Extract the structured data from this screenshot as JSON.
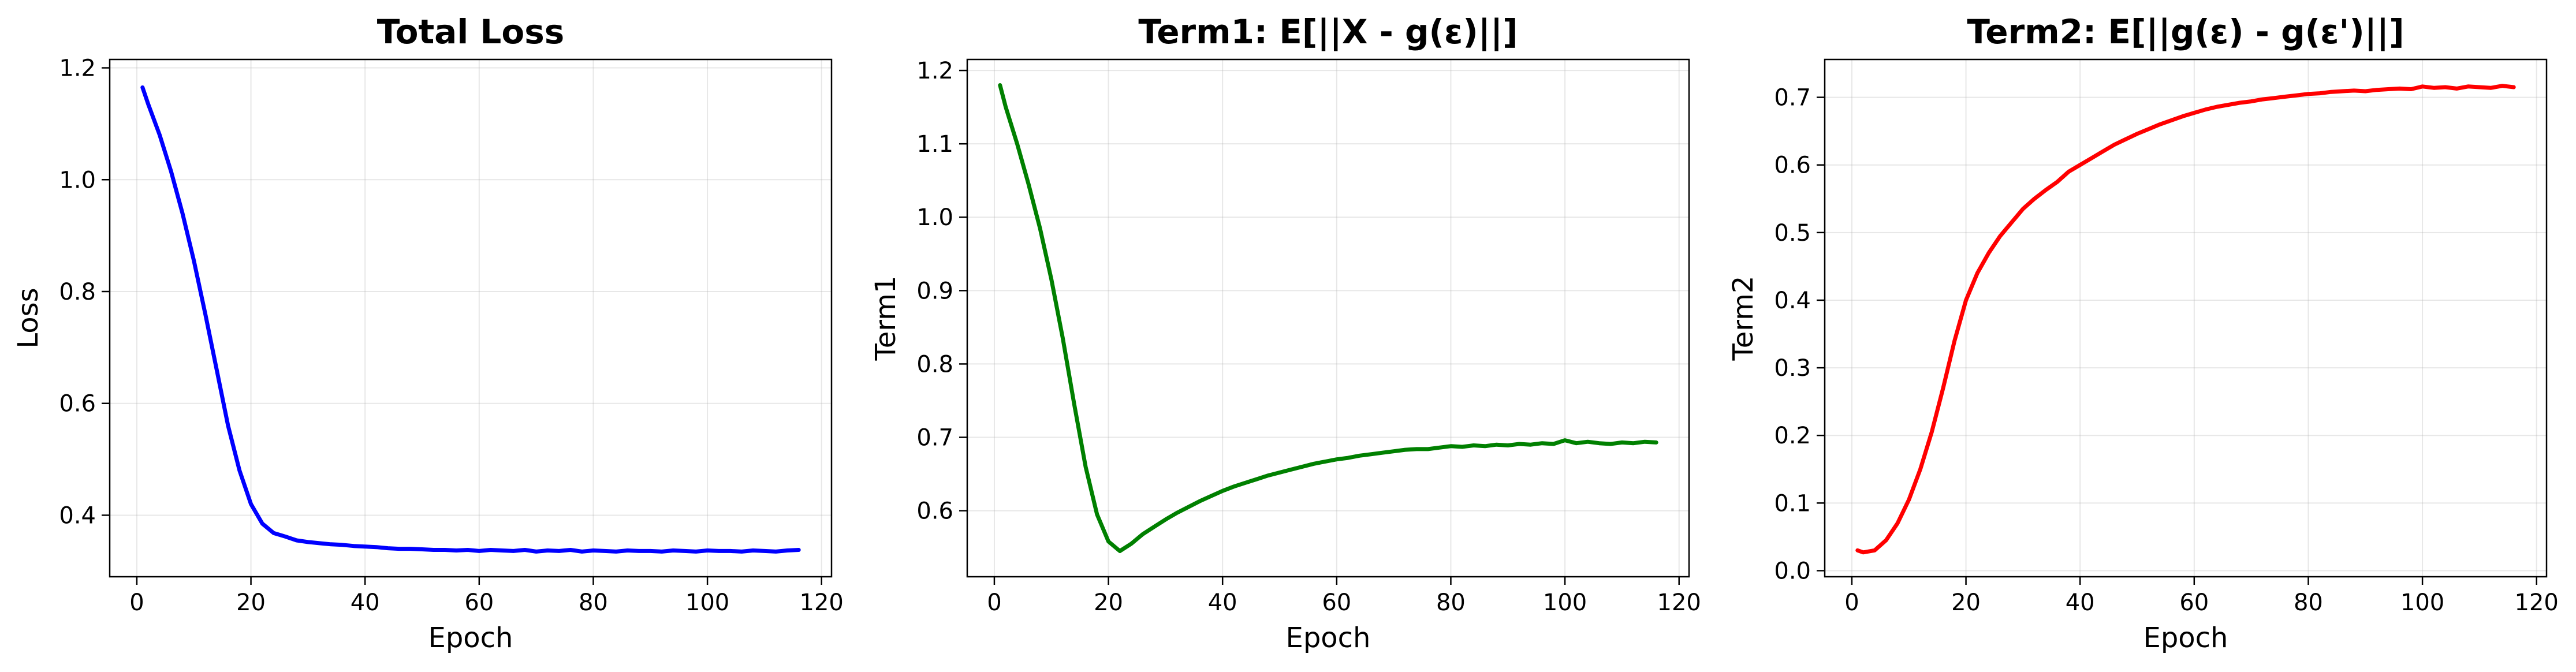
{
  "chart_data": [
    {
      "type": "line",
      "title": "Total Loss",
      "xlabel": "Epoch",
      "ylabel": "Loss",
      "xlim": [
        -4.75,
        121.75
      ],
      "ylim": [
        0.29,
        1.215
      ],
      "xticks": [
        0,
        20,
        40,
        60,
        80,
        100,
        120
      ],
      "yticks": [
        0.4,
        0.6,
        0.8,
        1.0,
        1.2
      ],
      "ytick_labels": [
        "0.4",
        "0.6",
        "0.8",
        "1.0",
        "1.2"
      ],
      "grid": true,
      "series": [
        {
          "color": "#0000ff",
          "x": [
            1,
            2,
            4,
            6,
            8,
            10,
            12,
            14,
            16,
            18,
            20,
            22,
            24,
            26,
            28,
            30,
            32,
            34,
            36,
            38,
            40,
            42,
            44,
            46,
            48,
            50,
            52,
            54,
            56,
            58,
            60,
            62,
            64,
            66,
            68,
            70,
            72,
            74,
            76,
            78,
            80,
            82,
            84,
            86,
            88,
            90,
            92,
            94,
            96,
            98,
            100,
            102,
            104,
            106,
            108,
            110,
            112,
            114,
            116
          ],
          "y": [
            1.165,
            1.135,
            1.08,
            1.015,
            0.94,
            0.855,
            0.76,
            0.66,
            0.56,
            0.48,
            0.42,
            0.385,
            0.368,
            0.362,
            0.355,
            0.352,
            0.35,
            0.348,
            0.347,
            0.345,
            0.344,
            0.343,
            0.341,
            0.34,
            0.34,
            0.339,
            0.338,
            0.338,
            0.337,
            0.338,
            0.336,
            0.338,
            0.337,
            0.336,
            0.338,
            0.335,
            0.337,
            0.336,
            0.338,
            0.335,
            0.337,
            0.336,
            0.335,
            0.337,
            0.336,
            0.336,
            0.335,
            0.337,
            0.336,
            0.335,
            0.337,
            0.336,
            0.336,
            0.335,
            0.337,
            0.336,
            0.335,
            0.337,
            0.338
          ]
        }
      ]
    },
    {
      "type": "line",
      "title": "Term1: E[||X - g(ε)||]",
      "xlabel": "Epoch",
      "ylabel": "Term1",
      "xlim": [
        -4.75,
        121.75
      ],
      "ylim": [
        0.51,
        1.215
      ],
      "xticks": [
        0,
        20,
        40,
        60,
        80,
        100,
        120
      ],
      "yticks": [
        0.6,
        0.7,
        0.8,
        0.9,
        1.0,
        1.1,
        1.2
      ],
      "ytick_labels": [
        "0.6",
        "0.7",
        "0.8",
        "0.9",
        "1.0",
        "1.1",
        "1.2"
      ],
      "grid": true,
      "series": [
        {
          "color": "#008000",
          "x": [
            1,
            2,
            4,
            6,
            8,
            10,
            12,
            14,
            16,
            18,
            20,
            22,
            24,
            26,
            28,
            30,
            32,
            34,
            36,
            38,
            40,
            42,
            44,
            46,
            48,
            50,
            52,
            54,
            56,
            58,
            60,
            62,
            64,
            66,
            68,
            70,
            72,
            74,
            76,
            78,
            80,
            82,
            84,
            86,
            88,
            90,
            92,
            94,
            96,
            98,
            100,
            102,
            104,
            106,
            108,
            110,
            112,
            114,
            116
          ],
          "y": [
            1.18,
            1.15,
            1.1,
            1.045,
            0.985,
            0.915,
            0.835,
            0.745,
            0.66,
            0.595,
            0.558,
            0.545,
            0.555,
            0.568,
            0.578,
            0.588,
            0.597,
            0.605,
            0.613,
            0.62,
            0.627,
            0.633,
            0.638,
            0.643,
            0.648,
            0.652,
            0.656,
            0.66,
            0.664,
            0.667,
            0.67,
            0.672,
            0.675,
            0.677,
            0.679,
            0.681,
            0.683,
            0.684,
            0.684,
            0.686,
            0.688,
            0.687,
            0.689,
            0.688,
            0.69,
            0.689,
            0.691,
            0.69,
            0.692,
            0.691,
            0.696,
            0.692,
            0.694,
            0.692,
            0.691,
            0.693,
            0.692,
            0.694,
            0.693
          ]
        }
      ]
    },
    {
      "type": "line",
      "title": "Term2: E[||g(ε) - g(ε')||]",
      "xlabel": "Epoch",
      "ylabel": "Term2",
      "xlim": [
        -4.75,
        121.75
      ],
      "ylim": [
        -0.009,
        0.756
      ],
      "xticks": [
        0,
        20,
        40,
        60,
        80,
        100,
        120
      ],
      "yticks": [
        0.0,
        0.1,
        0.2,
        0.3,
        0.4,
        0.5,
        0.6,
        0.7
      ],
      "ytick_labels": [
        "0.0",
        "0.1",
        "0.2",
        "0.3",
        "0.4",
        "0.5",
        "0.6",
        "0.7"
      ],
      "grid": true,
      "series": [
        {
          "color": "#ff0000",
          "x": [
            1,
            2,
            4,
            6,
            8,
            10,
            12,
            14,
            16,
            18,
            20,
            22,
            24,
            26,
            28,
            30,
            32,
            34,
            36,
            38,
            40,
            42,
            44,
            46,
            48,
            50,
            52,
            54,
            56,
            58,
            60,
            62,
            64,
            66,
            68,
            70,
            72,
            74,
            76,
            78,
            80,
            82,
            84,
            86,
            88,
            90,
            92,
            94,
            96,
            98,
            100,
            102,
            104,
            106,
            108,
            110,
            112,
            114,
            116
          ],
          "y": [
            0.03,
            0.027,
            0.03,
            0.045,
            0.07,
            0.105,
            0.15,
            0.205,
            0.27,
            0.34,
            0.4,
            0.44,
            0.47,
            0.495,
            0.515,
            0.535,
            0.55,
            0.563,
            0.575,
            0.59,
            0.6,
            0.61,
            0.62,
            0.63,
            0.638,
            0.646,
            0.653,
            0.66,
            0.666,
            0.672,
            0.677,
            0.682,
            0.686,
            0.689,
            0.692,
            0.694,
            0.697,
            0.699,
            0.701,
            0.703,
            0.705,
            0.706,
            0.708,
            0.709,
            0.71,
            0.709,
            0.711,
            0.712,
            0.713,
            0.712,
            0.716,
            0.714,
            0.715,
            0.713,
            0.716,
            0.715,
            0.714,
            0.717,
            0.715
          ]
        }
      ]
    }
  ]
}
